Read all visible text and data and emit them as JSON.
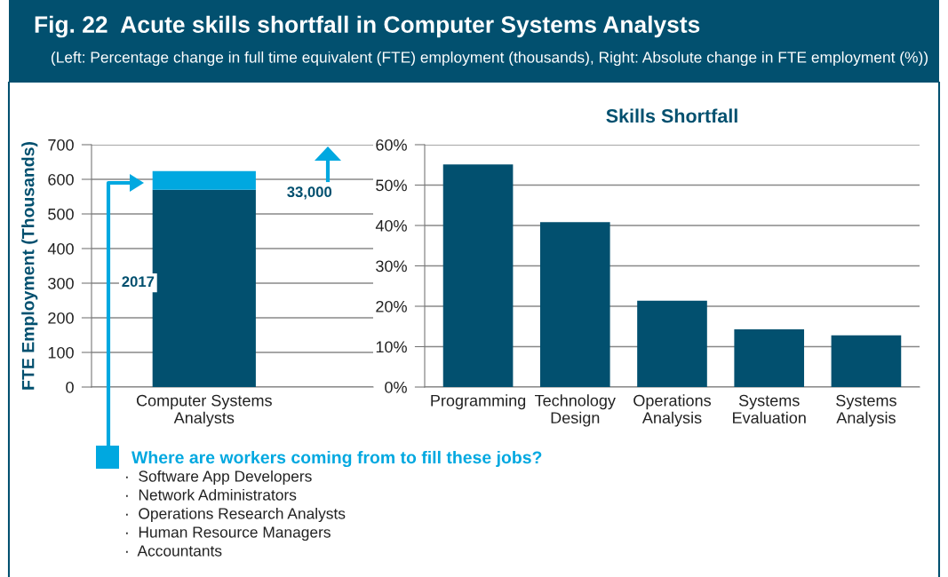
{
  "chart_data": [
    {
      "type": "bar",
      "title": "Fig. 22  Acute skills shortfall in Computer Systems Analysts",
      "subtitle": "(Left: Percentage change in full time equivalent (FTE) employment (thousands), Right: Absolute change in FTE employment (%))",
      "ylabel": "FTE Employment (Thousands)",
      "categories": [
        "Computer Systems\nAnalysts"
      ],
      "stacked": true,
      "series": [
        {
          "color": "#02506f",
          "values": [
            570
          ]
        },
        {
          "color": "#00a8e0",
          "values": [
            54
          ]
        }
      ],
      "ylim": [
        0,
        700
      ],
      "yticks": [
        0,
        100,
        200,
        300,
        400,
        500,
        600,
        700
      ],
      "grid": "y",
      "annotations": [
        "2017",
        "33,000",
        "Where are workers coming from to fill these jobs?",
        "·  Software App Developers",
        "·  Network Administrators",
        "·  Operations Research Analysts",
        "·  Human Resource Managers",
        "·  Accountants"
      ]
    },
    {
      "type": "bar",
      "title": "Skills Shortfall",
      "categories": [
        "Programming",
        "Technology\nDesign",
        "Operations\nAnalysis",
        "Systems\nEvaluation",
        "Systems\nAnalysis"
      ],
      "color": "#02506f",
      "values": [
        55.1,
        40.8,
        21.4,
        14.3,
        12.8
      ],
      "ylim": [
        0,
        60
      ],
      "yticks": [
        {
          "value": 0,
          "label": "0%"
        },
        {
          "value": 10,
          "label": "10%"
        },
        {
          "value": 20,
          "label": "20%"
        },
        {
          "value": 30,
          "label": "30%"
        },
        {
          "value": 40,
          "label": "40%"
        },
        {
          "value": 50,
          "label": "50%"
        },
        {
          "value": 60,
          "label": "60%"
        }
      ],
      "grid": "y"
    }
  ]
}
